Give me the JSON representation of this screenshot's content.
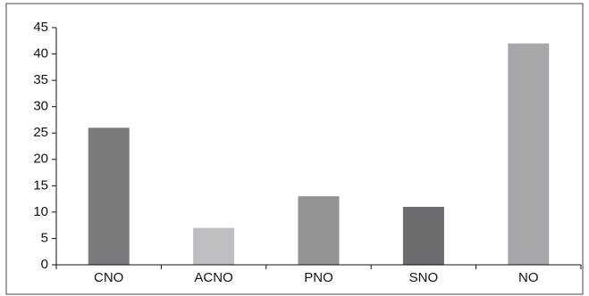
{
  "chart_data": {
    "type": "bar",
    "title": "",
    "xlabel": "",
    "ylabel": "",
    "categories": [
      "CNO",
      "ACNO",
      "PNO",
      "SNO",
      "NO"
    ],
    "values": [
      26,
      7,
      13,
      11,
      42
    ],
    "bar_colors": [
      "#7b7b7f",
      "#bdbec1",
      "#939396",
      "#6c6c70",
      "#a6a7aa"
    ],
    "ylim": [
      0,
      45
    ],
    "yticks": [
      "0",
      "5",
      "10",
      "15",
      "20",
      "25",
      "30",
      "35",
      "40",
      "45"
    ],
    "grid": false,
    "legend": "none"
  }
}
